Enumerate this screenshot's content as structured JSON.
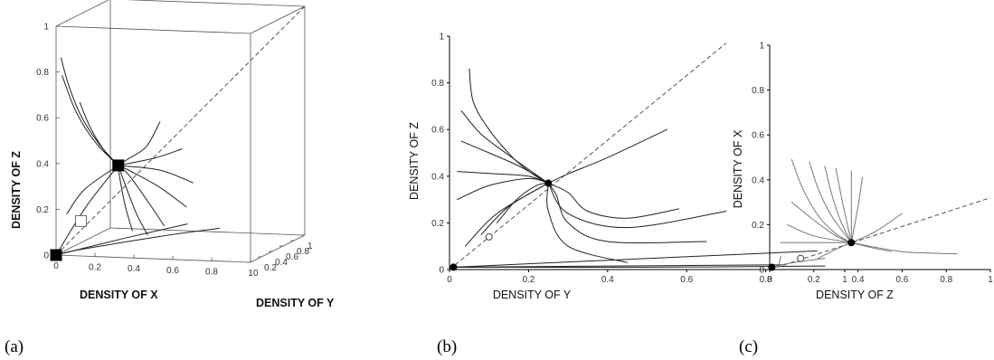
{
  "figure": {
    "panel_labels": [
      "(a)",
      "(b)",
      "(c)"
    ]
  },
  "chart_data": [
    {
      "type": "line",
      "panel": "(a)",
      "projection": "3d",
      "xlabel": "DENSITY OF X",
      "ylabel": "DENSITY OF Y",
      "zlabel": "DENSITY OF Z",
      "x_ticks": [
        "0",
        "0.2",
        "0.4",
        "0.6",
        "0.8",
        "1"
      ],
      "y_ticks": [
        "0",
        "0.2",
        "0.4",
        "0.6",
        "0.8",
        "1"
      ],
      "z_ticks": [
        "0",
        "0.2",
        "0.4",
        "0.6",
        "0.8",
        "1"
      ],
      "xlim": [
        0,
        1
      ],
      "ylim": [
        0,
        1
      ],
      "zlim": [
        0,
        1
      ],
      "stable_point": {
        "x": 0.25,
        "y": 0.25,
        "z": 0.37
      },
      "origin_point": {
        "x": 0,
        "y": 0,
        "z": 0
      },
      "unstable_point": {
        "x": 0.1,
        "y": 0.1,
        "z": 0.14
      },
      "diagonal": {
        "from": [
          0,
          0,
          0
        ],
        "to": [
          1,
          1,
          1
        ],
        "style": "dashed"
      },
      "series": [
        {
          "points": [
            [
              0.02,
              0.02,
              0.86
            ],
            [
              0.05,
              0.05,
              0.74
            ],
            [
              0.1,
              0.1,
              0.6
            ],
            [
              0.17,
              0.18,
              0.47
            ],
            [
              0.25,
              0.25,
              0.37
            ]
          ]
        },
        {
          "points": [
            [
              0.02,
              0.04,
              0.78
            ],
            [
              0.08,
              0.08,
              0.62
            ],
            [
              0.16,
              0.15,
              0.48
            ],
            [
              0.25,
              0.25,
              0.37
            ]
          ]
        },
        {
          "points": [
            [
              0.1,
              0.08,
              0.66
            ],
            [
              0.14,
              0.14,
              0.54
            ],
            [
              0.2,
              0.2,
              0.43
            ],
            [
              0.25,
              0.25,
              0.37
            ]
          ]
        },
        {
          "points": [
            [
              0.45,
              0.3,
              0.56
            ],
            [
              0.38,
              0.3,
              0.45
            ],
            [
              0.3,
              0.27,
              0.4
            ],
            [
              0.25,
              0.25,
              0.37
            ]
          ]
        },
        {
          "points": [
            [
              0.55,
              0.35,
              0.44
            ],
            [
              0.42,
              0.32,
              0.4
            ],
            [
              0.25,
              0.25,
              0.37
            ]
          ]
        },
        {
          "points": [
            [
              0.62,
              0.3,
              0.3
            ],
            [
              0.45,
              0.3,
              0.35
            ],
            [
              0.25,
              0.25,
              0.37
            ]
          ]
        },
        {
          "points": [
            [
              0.6,
              0.25,
              0.2
            ],
            [
              0.45,
              0.28,
              0.28
            ],
            [
              0.3,
              0.26,
              0.35
            ],
            [
              0.25,
              0.25,
              0.37
            ]
          ]
        },
        {
          "points": [
            [
              0.5,
              0.2,
              0.12
            ],
            [
              0.4,
              0.25,
              0.22
            ],
            [
              0.3,
              0.26,
              0.33
            ],
            [
              0.25,
              0.25,
              0.37
            ]
          ]
        },
        {
          "points": [
            [
              0.42,
              0.18,
              0.08
            ],
            [
              0.35,
              0.22,
              0.17
            ],
            [
              0.28,
              0.25,
              0.3
            ],
            [
              0.25,
              0.25,
              0.37
            ]
          ]
        },
        {
          "points": [
            [
              0.35,
              0.15,
              0.1
            ],
            [
              0.3,
              0.2,
              0.2
            ],
            [
              0.26,
              0.24,
              0.32
            ],
            [
              0.25,
              0.25,
              0.37
            ]
          ]
        },
        {
          "points": [
            [
              0.7,
              0.5,
              0.08
            ],
            [
              0.45,
              0.3,
              0.06
            ],
            [
              0.1,
              0.05,
              0.02
            ],
            [
              0,
              0,
              0
            ]
          ]
        },
        {
          "points": [
            [
              0.55,
              0.45,
              0.1
            ],
            [
              0.3,
              0.2,
              0.06
            ],
            [
              0,
              0,
              0
            ]
          ]
        },
        {
          "points": [
            [
              0.05,
              0.02,
              0.18
            ],
            [
              0.12,
              0.1,
              0.28
            ],
            [
              0.25,
              0.25,
              0.37
            ]
          ]
        },
        {
          "points": [
            [
              0,
              0,
              0
            ],
            [
              0.12,
              0.12,
              0.2
            ],
            [
              0.25,
              0.25,
              0.37
            ]
          ]
        }
      ]
    },
    {
      "type": "line",
      "panel": "(b)",
      "xlabel": "DENSITY OF Y",
      "ylabel": "DENSITY OF Z",
      "x_ticks": [
        "0",
        "0.2",
        "0.4",
        "0.6",
        "0.8",
        "1"
      ],
      "y_ticks": [
        "0",
        "0.2",
        "0.4",
        "0.6",
        "0.8",
        "1"
      ],
      "xlim": [
        0,
        1
      ],
      "ylim": [
        0,
        1
      ],
      "stable_point": {
        "x": 0.25,
        "y": 0.37
      },
      "origin_point": {
        "x": 0.01,
        "y": 0.01
      },
      "unstable_point": {
        "x": 0.1,
        "y": 0.14
      },
      "diagonal": {
        "from": [
          0,
          0
        ],
        "to": [
          0.7,
          0.97
        ],
        "style": "dashed"
      },
      "series": [
        {
          "points": [
            [
              0.05,
              0.86
            ],
            [
              0.06,
              0.72
            ],
            [
              0.1,
              0.6
            ],
            [
              0.16,
              0.48
            ],
            [
              0.21,
              0.41
            ],
            [
              0.25,
              0.37
            ]
          ]
        },
        {
          "points": [
            [
              0.03,
              0.68
            ],
            [
              0.08,
              0.58
            ],
            [
              0.15,
              0.49
            ],
            [
              0.25,
              0.37
            ]
          ]
        },
        {
          "points": [
            [
              0.03,
              0.55
            ],
            [
              0.1,
              0.5
            ],
            [
              0.18,
              0.44
            ],
            [
              0.25,
              0.37
            ]
          ]
        },
        {
          "points": [
            [
              0.02,
              0.42
            ],
            [
              0.12,
              0.41
            ],
            [
              0.2,
              0.4
            ],
            [
              0.25,
              0.37
            ]
          ]
        },
        {
          "points": [
            [
              0.02,
              0.3
            ],
            [
              0.1,
              0.36
            ],
            [
              0.2,
              0.39
            ],
            [
              0.25,
              0.37
            ]
          ]
        },
        {
          "points": [
            [
              0.55,
              0.6
            ],
            [
              0.4,
              0.48
            ],
            [
              0.3,
              0.41
            ],
            [
              0.25,
              0.37
            ]
          ]
        },
        {
          "points": [
            [
              0.58,
              0.26
            ],
            [
              0.45,
              0.22
            ],
            [
              0.35,
              0.25
            ],
            [
              0.3,
              0.33
            ],
            [
              0.25,
              0.37
            ]
          ]
        },
        {
          "points": [
            [
              0.45,
              0.03
            ],
            [
              0.3,
              0.1
            ],
            [
              0.25,
              0.25
            ],
            [
              0.25,
              0.37
            ]
          ]
        },
        {
          "points": [
            [
              0.65,
              0.12
            ],
            [
              0.4,
              0.12
            ],
            [
              0.3,
              0.2
            ],
            [
              0.27,
              0.32
            ],
            [
              0.25,
              0.37
            ]
          ]
        },
        {
          "points": [
            [
              0.7,
              0.25
            ],
            [
              0.45,
              0.18
            ],
            [
              0.3,
              0.24
            ],
            [
              0.25,
              0.37
            ]
          ]
        },
        {
          "points": [
            [
              0.12,
              0.2
            ],
            [
              0.17,
              0.3
            ],
            [
              0.22,
              0.36
            ],
            [
              0.25,
              0.37
            ]
          ]
        },
        {
          "points": [
            [
              0.08,
              0.15
            ],
            [
              0.15,
              0.27
            ],
            [
              0.25,
              0.37
            ]
          ]
        },
        {
          "points": [
            [
              0.04,
              0.1
            ],
            [
              0.12,
              0.24
            ],
            [
              0.25,
              0.37
            ]
          ]
        },
        {
          "points": [
            [
              0.93,
              0.08
            ],
            [
              0.4,
              0.04
            ],
            [
              0.01,
              0.01
            ]
          ]
        },
        {
          "points": [
            [
              0.85,
              0.02
            ],
            [
              0.4,
              0.015
            ],
            [
              0.01,
              0.01
            ]
          ]
        },
        {
          "points": [
            [
              0.95,
              0.015
            ],
            [
              0.5,
              0.01
            ],
            [
              0.01,
              0.01
            ]
          ]
        }
      ]
    },
    {
      "type": "line",
      "panel": "(c)",
      "xlabel": "DENSITY OF Z",
      "ylabel": "DENSITY OF X",
      "x_ticks": [
        "0",
        "0.2",
        "0.4",
        "0.6",
        "0.8",
        "1"
      ],
      "y_ticks": [
        "0",
        "0.2",
        "0.4",
        "0.6",
        "0.8",
        "1"
      ],
      "xlim": [
        0,
        1
      ],
      "ylim": [
        0,
        1
      ],
      "stable_point": {
        "x": 0.37,
        "y": 0.12
      },
      "origin_point": {
        "x": 0.01,
        "y": 0.01
      },
      "unstable_point": {
        "x": 0.14,
        "y": 0.05
      },
      "diagonal": {
        "from": [
          0,
          0
        ],
        "to": [
          1,
          0.32
        ],
        "style": "dashed"
      },
      "series": [
        {
          "points": [
            [
              0.1,
              0.49
            ],
            [
              0.15,
              0.36
            ],
            [
              0.22,
              0.24
            ],
            [
              0.3,
              0.16
            ],
            [
              0.37,
              0.12
            ]
          ]
        },
        {
          "points": [
            [
              0.18,
              0.48
            ],
            [
              0.22,
              0.36
            ],
            [
              0.28,
              0.24
            ],
            [
              0.37,
              0.12
            ]
          ]
        },
        {
          "points": [
            [
              0.25,
              0.46
            ],
            [
              0.28,
              0.34
            ],
            [
              0.32,
              0.22
            ],
            [
              0.37,
              0.12
            ]
          ]
        },
        {
          "points": [
            [
              0.3,
              0.45
            ],
            [
              0.33,
              0.3
            ],
            [
              0.37,
              0.12
            ]
          ]
        },
        {
          "points": [
            [
              0.37,
              0.44
            ],
            [
              0.37,
              0.3
            ],
            [
              0.37,
              0.12
            ]
          ]
        },
        {
          "points": [
            [
              0.42,
              0.41
            ],
            [
              0.4,
              0.28
            ],
            [
              0.37,
              0.12
            ]
          ]
        },
        {
          "points": [
            [
              0.1,
              0.3
            ],
            [
              0.2,
              0.22
            ],
            [
              0.3,
              0.15
            ],
            [
              0.37,
              0.12
            ]
          ]
        },
        {
          "points": [
            [
              0.08,
              0.2
            ],
            [
              0.2,
              0.15
            ],
            [
              0.37,
              0.12
            ]
          ]
        },
        {
          "points": [
            [
              0.05,
              0.12
            ],
            [
              0.2,
              0.12
            ],
            [
              0.37,
              0.12
            ]
          ]
        },
        {
          "points": [
            [
              0.6,
              0.25
            ],
            [
              0.48,
              0.17
            ],
            [
              0.37,
              0.12
            ]
          ]
        },
        {
          "points": [
            [
              0.85,
              0.07
            ],
            [
              0.6,
              0.08
            ],
            [
              0.37,
              0.12
            ]
          ]
        },
        {
          "points": [
            [
              0.55,
              0.08
            ],
            [
              0.45,
              0.1
            ],
            [
              0.37,
              0.12
            ]
          ]
        },
        {
          "points": [
            [
              0.22,
              0.05
            ],
            [
              0.3,
              0.09
            ],
            [
              0.37,
              0.12
            ]
          ]
        },
        {
          "points": [
            [
              0.05,
              0.06
            ],
            [
              0.04,
              0.02
            ],
            [
              0.01,
              0.01
            ]
          ]
        },
        {
          "points": [
            [
              0.25,
              0.05
            ],
            [
              0.1,
              0.03
            ],
            [
              0.01,
              0.01
            ]
          ]
        }
      ]
    }
  ]
}
